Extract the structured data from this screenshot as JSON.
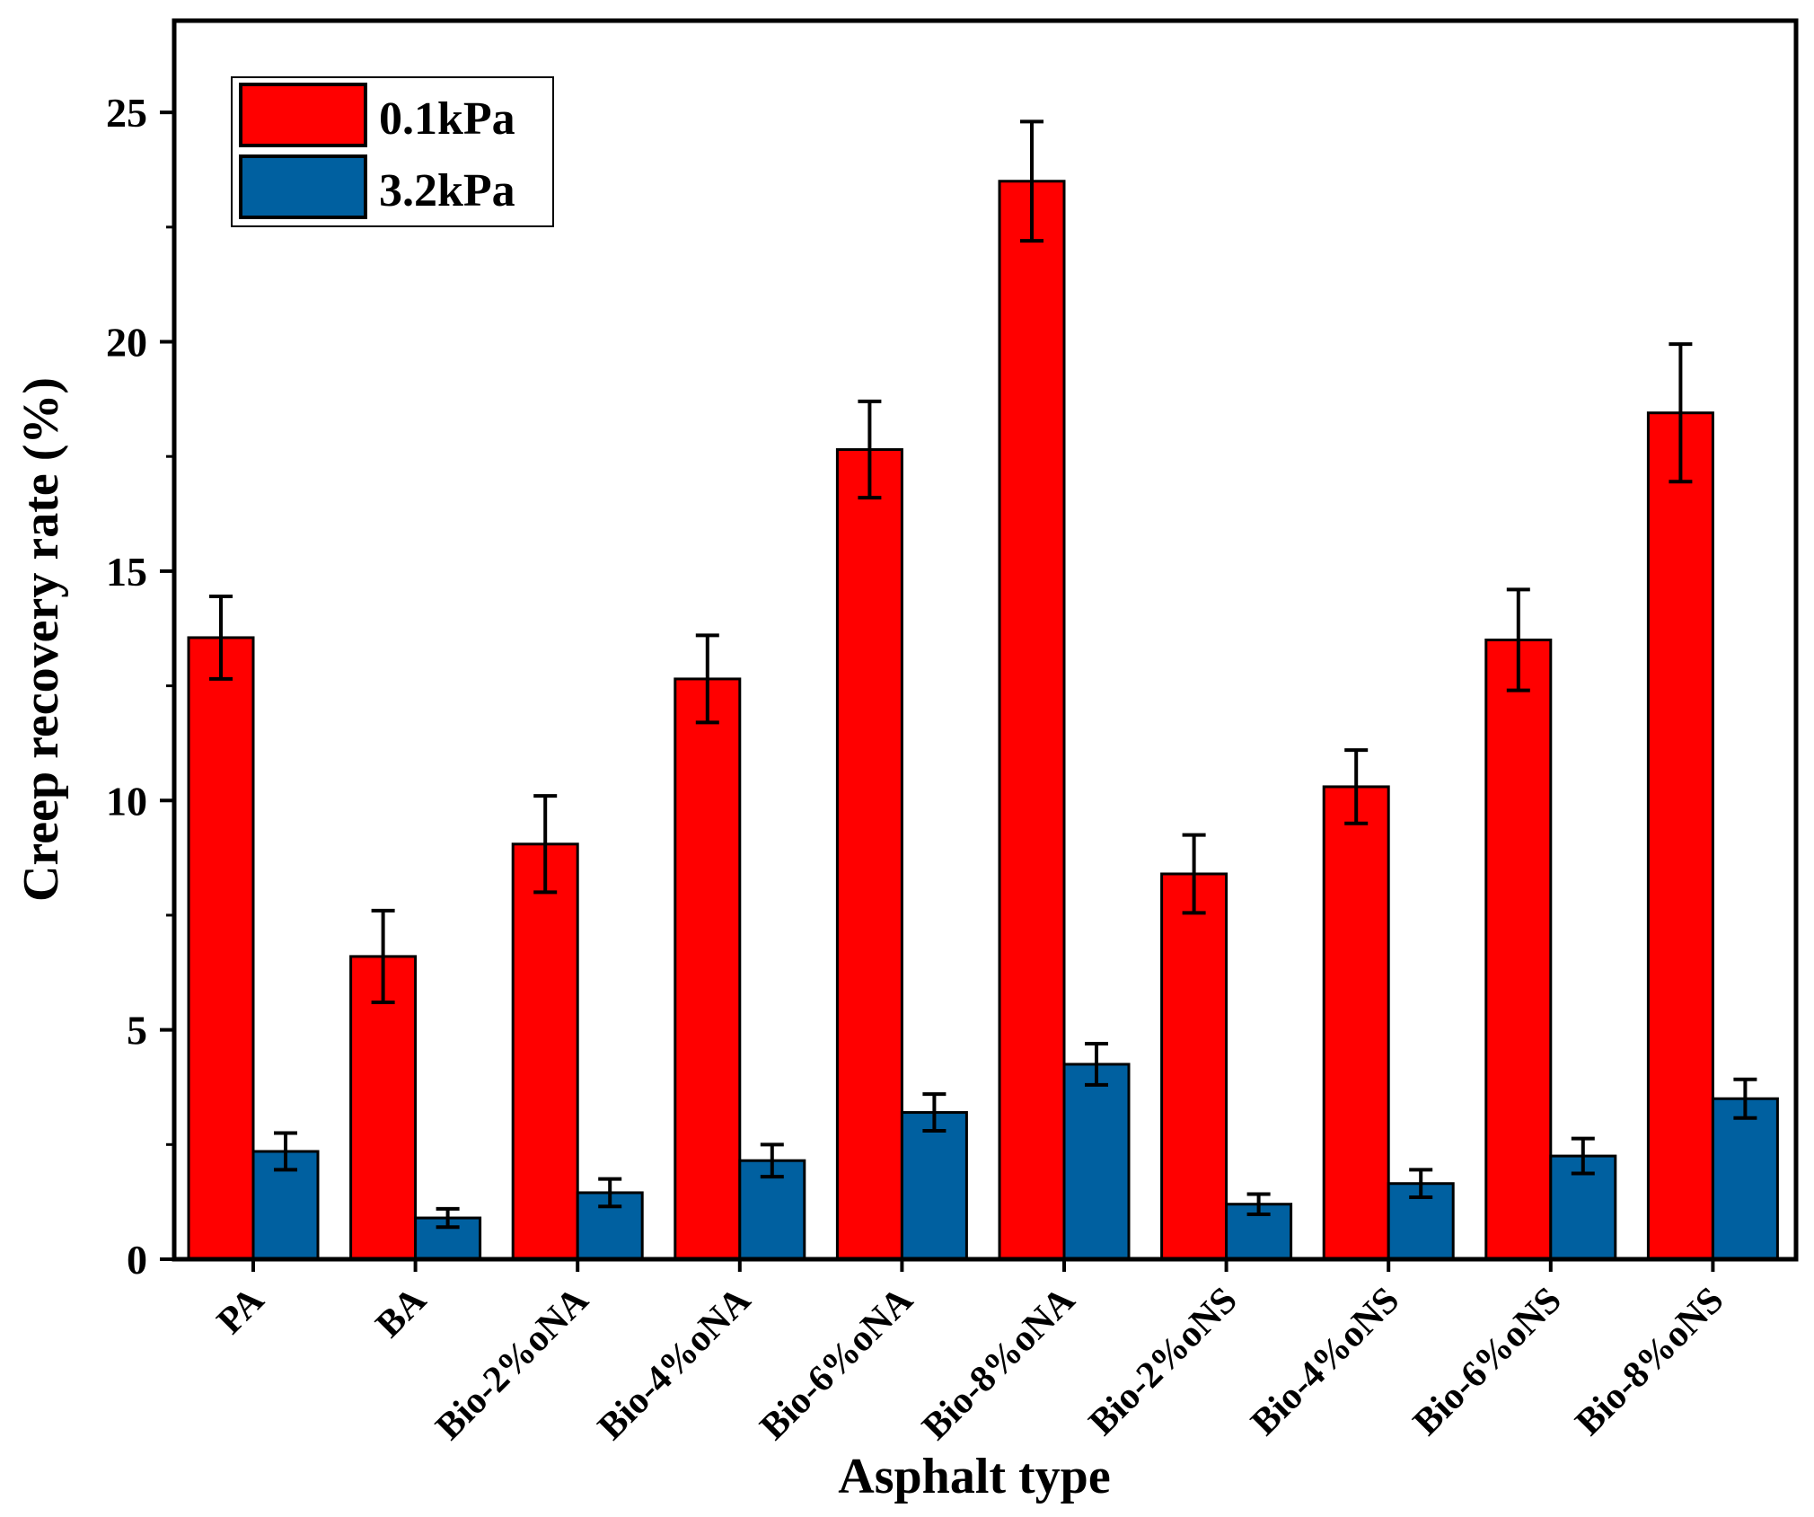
{
  "chart_data": {
    "type": "bar",
    "title": "",
    "xlabel": "Asphalt type",
    "ylabel": "Creep recovery rate (%)",
    "ylim": [
      0,
      27
    ],
    "yticks": [
      0,
      5,
      10,
      15,
      20,
      25
    ],
    "grid": false,
    "legend_position": "top-left",
    "categories": [
      "PA",
      "BA",
      "Bio-2%oNA",
      "Bio-4%oNA",
      "Bio-6%oNA",
      "Bio-8%oNA",
      "Bio-2%oNS",
      "Bio-4%oNS",
      "Bio-6%oNS",
      "Bio-8%oNS"
    ],
    "series": [
      {
        "name": "0.1kPa",
        "color": "#ff0000",
        "values": [
          13.55,
          6.6,
          9.05,
          12.65,
          17.65,
          23.5,
          8.4,
          10.3,
          13.5,
          18.45
        ],
        "errors": [
          0.9,
          1.0,
          1.05,
          0.95,
          1.05,
          1.3,
          0.85,
          0.8,
          1.1,
          1.5
        ]
      },
      {
        "name": "3.2kPa",
        "color": "#0060a0",
        "values": [
          2.35,
          0.9,
          1.45,
          2.15,
          3.2,
          4.25,
          1.2,
          1.65,
          2.25,
          3.5
        ],
        "errors": [
          0.4,
          0.2,
          0.3,
          0.35,
          0.4,
          0.45,
          0.22,
          0.3,
          0.38,
          0.42
        ]
      }
    ]
  }
}
